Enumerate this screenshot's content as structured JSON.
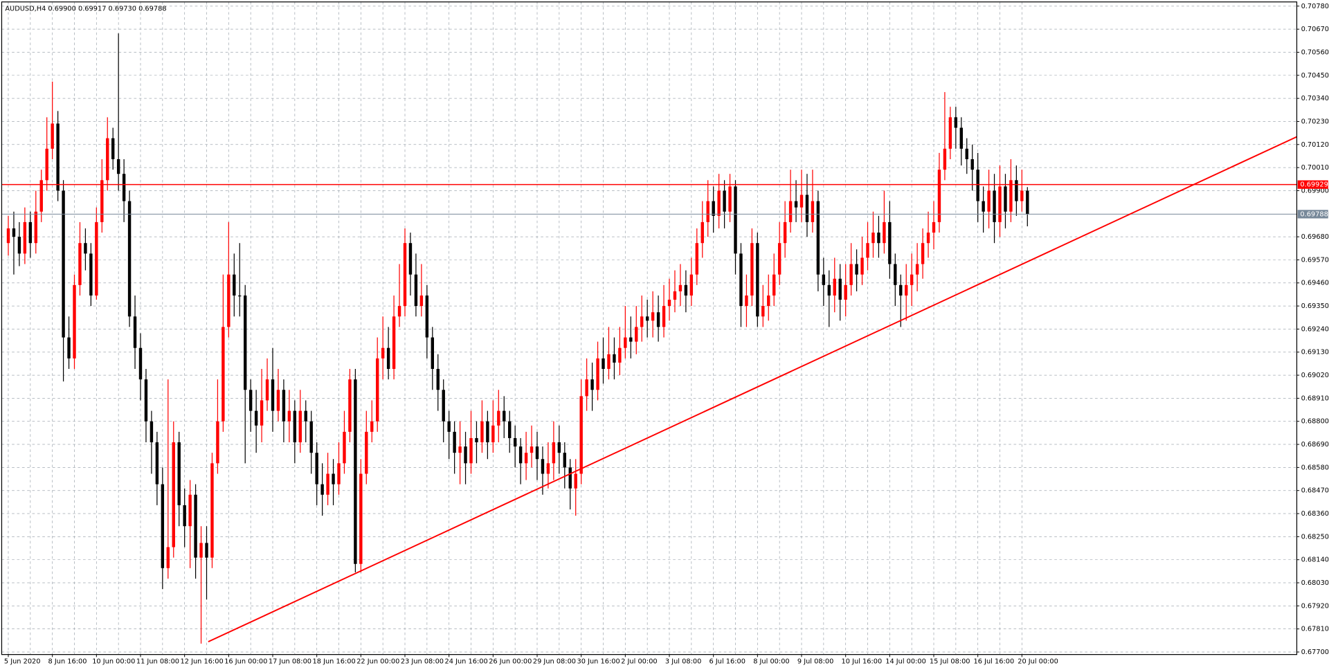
{
  "chart_data": {
    "type": "candlestick",
    "title": "AUDUSD,H4  0.69900 0.69917 0.69730 0.69788",
    "bull_color": "#ff0000",
    "bear_color": "#000000",
    "grid": true,
    "xlim": [
      -1.2,
      233.9
    ],
    "ylim": [
      0.67688,
      0.708
    ],
    "xticks": [
      {
        "value": 0,
        "label": "5 Jun 2020"
      },
      {
        "value": 8,
        "label": "8 Jun 16:00"
      },
      {
        "value": 16,
        "label": "10 Jun 00:00"
      },
      {
        "value": 24,
        "label": "11 Jun 08:00"
      },
      {
        "value": 32,
        "label": "12 Jun 16:00"
      },
      {
        "value": 40,
        "label": "16 Jun 00:00"
      },
      {
        "value": 48,
        "label": "17 Jun 08:00"
      },
      {
        "value": 56,
        "label": "18 Jun 16:00"
      },
      {
        "value": 64,
        "label": "22 Jun 00:00"
      },
      {
        "value": 72,
        "label": "23 Jun 08:00"
      },
      {
        "value": 80,
        "label": "24 Jun 16:00"
      },
      {
        "value": 88,
        "label": "26 Jun 00:00"
      },
      {
        "value": 96,
        "label": "29 Jun 08:00"
      },
      {
        "value": 104,
        "label": "30 Jun 16:00"
      },
      {
        "value": 112,
        "label": "2 Jul 00:00"
      },
      {
        "value": 120,
        "label": "3 Jul 08:00"
      },
      {
        "value": 128,
        "label": "6 Jul 16:00"
      },
      {
        "value": 136,
        "label": "8 Jul 00:00"
      },
      {
        "value": 144,
        "label": "9 Jul 08:00"
      },
      {
        "value": 152,
        "label": "10 Jul 16:00"
      },
      {
        "value": 160,
        "label": "14 Jul 00:00"
      },
      {
        "value": 168,
        "label": "15 Jul 08:00"
      },
      {
        "value": 176,
        "label": "16 Jul 16:00"
      },
      {
        "value": 184,
        "label": "20 Jul 00:00"
      }
    ],
    "yticks": [
      {
        "value": 0.7078,
        "label": "0.70780"
      },
      {
        "value": 0.7067,
        "label": "0.70670"
      },
      {
        "value": 0.7056,
        "label": "0.70560"
      },
      {
        "value": 0.7045,
        "label": "0.70450"
      },
      {
        "value": 0.7034,
        "label": "0.70340"
      },
      {
        "value": 0.7023,
        "label": "0.70230"
      },
      {
        "value": 0.7012,
        "label": "0.70120"
      },
      {
        "value": 0.7001,
        "label": "0.70010"
      },
      {
        "value": 0.699,
        "label": "0.69900"
      },
      {
        "value": 0.6968,
        "label": "0.69680"
      },
      {
        "value": 0.6957,
        "label": "0.69570"
      },
      {
        "value": 0.6946,
        "label": "0.69460"
      },
      {
        "value": 0.6935,
        "label": "0.69350"
      },
      {
        "value": 0.6924,
        "label": "0.69240"
      },
      {
        "value": 0.6913,
        "label": "0.69130"
      },
      {
        "value": 0.6902,
        "label": "0.69020"
      },
      {
        "value": 0.6891,
        "label": "0.68910"
      },
      {
        "value": 0.688,
        "label": "0.68800"
      },
      {
        "value": 0.6869,
        "label": "0.68690"
      },
      {
        "value": 0.6858,
        "label": "0.68580"
      },
      {
        "value": 0.6847,
        "label": "0.68470"
      },
      {
        "value": 0.6836,
        "label": "0.68360"
      },
      {
        "value": 0.6825,
        "label": "0.68250"
      },
      {
        "value": 0.6814,
        "label": "0.68140"
      },
      {
        "value": 0.6803,
        "label": "0.68030"
      },
      {
        "value": 0.6792,
        "label": "0.67920"
      },
      {
        "value": 0.6781,
        "label": "0.67810"
      },
      {
        "value": 0.677,
        "label": "0.67700"
      }
    ],
    "hlines": [
      {
        "value": 0.69929,
        "color": "#ff0000"
      },
      {
        "value": 0.69788,
        "color": "#778899"
      }
    ],
    "trendline": {
      "x": [
        36.3,
        233.9
      ],
      "y": [
        0.67749,
        0.70157
      ],
      "color": "#ff0000"
    },
    "open": [
      0.6965,
      0.6972,
      0.6968,
      0.696,
      0.6975,
      0.6965,
      0.698,
      0.6995,
      0.701,
      0.7022,
      0.699,
      0.692,
      0.691,
      0.6945,
      0.6965,
      0.696,
      0.694,
      0.6975,
      0.6995,
      0.7015,
      0.7005,
      0.6998,
      0.6985,
      0.693,
      0.6915,
      0.69,
      0.688,
      0.687,
      0.685,
      0.681,
      0.682,
      0.687,
      0.684,
      0.683,
      0.6845,
      0.6815,
      0.6822,
      0.6815,
      0.686,
      0.688,
      0.6925,
      0.695,
      0.694,
      0.694,
      0.6895,
      0.6885,
      0.6878,
      0.689,
      0.69,
      0.6885,
      0.6895,
      0.688,
      0.6885,
      0.687,
      0.6885,
      0.688,
      0.6865,
      0.685,
      0.6845,
      0.6855,
      0.685,
      0.686,
      0.6875,
      0.69,
      0.6812,
      0.6855,
      0.6875,
      0.688,
      0.691,
      0.6915,
      0.6905,
      0.693,
      0.6935,
      0.6965,
      0.695,
      0.6935,
      0.694,
      0.692,
      0.6905,
      0.6895,
      0.688,
      0.6875,
      0.6865,
      0.6868,
      0.686,
      0.6872,
      0.687,
      0.688,
      0.687,
      0.6878,
      0.6885,
      0.688,
      0.6872,
      0.6868,
      0.686,
      0.6865,
      0.6868,
      0.6862,
      0.6855,
      0.686,
      0.687,
      0.6865,
      0.6858,
      0.6848,
      0.6855,
      0.6892,
      0.69,
      0.6895,
      0.691,
      0.6905,
      0.6912,
      0.6908,
      0.6915,
      0.692,
      0.6918,
      0.6925,
      0.693,
      0.6928,
      0.6932,
      0.6925,
      0.6935,
      0.6938,
      0.6942,
      0.6945,
      0.694,
      0.695,
      0.6965,
      0.6975,
      0.6985,
      0.6978,
      0.699,
      0.698,
      0.6992,
      0.696,
      0.6935,
      0.694,
      0.6965,
      0.693,
      0.6935,
      0.694,
      0.695,
      0.6965,
      0.6975,
      0.6985,
      0.6982,
      0.6988,
      0.6975,
      0.6985,
      0.695,
      0.6945,
      0.694,
      0.6948,
      0.6938,
      0.6945,
      0.6955,
      0.695,
      0.6958,
      0.6965,
      0.697,
      0.6965,
      0.6975,
      0.6955,
      0.6945,
      0.694,
      0.6945,
      0.695,
      0.6955,
      0.6965,
      0.697,
      0.6975,
      0.7,
      0.701,
      0.7025,
      0.702,
      0.701,
      0.7005,
      0.7,
      0.6985,
      0.698,
      0.699,
      0.6975,
      0.6992,
      0.698,
      0.6995,
      0.6985,
      0.699
    ],
    "high": [
      0.6978,
      0.698,
      0.6975,
      0.6982,
      0.698,
      0.699,
      0.7,
      0.7025,
      0.7042,
      0.7028,
      0.6995,
      0.693,
      0.695,
      0.6975,
      0.6972,
      0.6965,
      0.6982,
      0.7005,
      0.7025,
      0.702,
      0.7065,
      0.7005,
      0.699,
      0.694,
      0.6922,
      0.6905,
      0.6885,
      0.6875,
      0.6858,
      0.69,
      0.688,
      0.6875,
      0.6848,
      0.6852,
      0.685,
      0.683,
      0.683,
      0.6865,
      0.69,
      0.695,
      0.6975,
      0.696,
      0.6965,
      0.6945,
      0.69,
      0.6895,
      0.6905,
      0.691,
      0.6915,
      0.6905,
      0.69,
      0.6895,
      0.689,
      0.6895,
      0.689,
      0.6885,
      0.687,
      0.686,
      0.6865,
      0.6862,
      0.687,
      0.6885,
      0.6905,
      0.6905,
      0.6862,
      0.6885,
      0.689,
      0.692,
      0.693,
      0.6925,
      0.694,
      0.6955,
      0.6972,
      0.697,
      0.696,
      0.6955,
      0.6945,
      0.6925,
      0.6912,
      0.69,
      0.6885,
      0.688,
      0.688,
      0.6875,
      0.6885,
      0.688,
      0.689,
      0.6885,
      0.689,
      0.6895,
      0.6892,
      0.6885,
      0.6878,
      0.6872,
      0.6875,
      0.6878,
      0.6875,
      0.6868,
      0.687,
      0.688,
      0.6878,
      0.687,
      0.6862,
      0.6862,
      0.69,
      0.691,
      0.6908,
      0.6918,
      0.692,
      0.6925,
      0.692,
      0.6925,
      0.6935,
      0.693,
      0.6935,
      0.694,
      0.6938,
      0.6942,
      0.694,
      0.6945,
      0.6948,
      0.6952,
      0.6955,
      0.6952,
      0.6958,
      0.6972,
      0.6985,
      0.6995,
      0.6992,
      0.6998,
      0.6995,
      0.6998,
      0.6995,
      0.6965,
      0.695,
      0.6972,
      0.697,
      0.6945,
      0.695,
      0.696,
      0.6975,
      0.6985,
      0.7,
      0.6995,
      0.7,
      0.6998,
      0.7,
      0.699,
      0.6958,
      0.6952,
      0.6958,
      0.6955,
      0.6955,
      0.6965,
      0.6962,
      0.6968,
      0.6975,
      0.698,
      0.6978,
      0.699,
      0.6985,
      0.696,
      0.695,
      0.6955,
      0.696,
      0.6965,
      0.6972,
      0.698,
      0.6985,
      0.7008,
      0.7037,
      0.703,
      0.703,
      0.7025,
      0.7015,
      0.7012,
      0.7008,
      0.6992,
      0.7,
      0.6998,
      0.7002,
      0.6998,
      0.7005,
      0.7002,
      0.7,
      0.69917
    ],
    "low": [
      0.6959,
      0.695,
      0.6954,
      0.6955,
      0.6958,
      0.696,
      0.6975,
      0.699,
      0.7005,
      0.6985,
      0.6899,
      0.6905,
      0.6905,
      0.694,
      0.6952,
      0.6935,
      0.6938,
      0.697,
      0.699,
      0.7,
      0.699,
      0.6975,
      0.6925,
      0.6905,
      0.689,
      0.687,
      0.6855,
      0.684,
      0.68,
      0.6805,
      0.6815,
      0.683,
      0.682,
      0.681,
      0.6805,
      0.6774,
      0.6795,
      0.681,
      0.6855,
      0.6875,
      0.692,
      0.693,
      0.693,
      0.686,
      0.6875,
      0.6865,
      0.687,
      0.6885,
      0.6875,
      0.688,
      0.687,
      0.687,
      0.686,
      0.6865,
      0.687,
      0.6855,
      0.684,
      0.6835,
      0.684,
      0.684,
      0.6845,
      0.6855,
      0.687,
      0.6808,
      0.6808,
      0.685,
      0.687,
      0.6875,
      0.69,
      0.69,
      0.69,
      0.6925,
      0.693,
      0.694,
      0.693,
      0.693,
      0.691,
      0.6895,
      0.6885,
      0.687,
      0.6862,
      0.6855,
      0.685,
      0.685,
      0.6855,
      0.686,
      0.6865,
      0.6862,
      0.6865,
      0.687,
      0.6872,
      0.6865,
      0.6858,
      0.685,
      0.6852,
      0.6858,
      0.6852,
      0.6845,
      0.6848,
      0.6852,
      0.6855,
      0.6848,
      0.6838,
      0.6835,
      0.685,
      0.6885,
      0.6885,
      0.689,
      0.6898,
      0.69,
      0.69,
      0.6902,
      0.691,
      0.691,
      0.6912,
      0.6918,
      0.692,
      0.692,
      0.6918,
      0.692,
      0.6928,
      0.6932,
      0.6935,
      0.6932,
      0.6935,
      0.6945,
      0.6958,
      0.6968,
      0.697,
      0.6972,
      0.6972,
      0.6975,
      0.695,
      0.6925,
      0.6925,
      0.6935,
      0.6925,
      0.6925,
      0.6928,
      0.6935,
      0.6945,
      0.6958,
      0.697,
      0.6975,
      0.6975,
      0.6968,
      0.697,
      0.6942,
      0.6935,
      0.6925,
      0.6932,
      0.6928,
      0.693,
      0.694,
      0.6942,
      0.6945,
      0.6952,
      0.6958,
      0.6958,
      0.696,
      0.6948,
      0.6935,
      0.6925,
      0.6928,
      0.6935,
      0.6942,
      0.6948,
      0.6958,
      0.6962,
      0.697,
      0.6995,
      0.7005,
      0.701,
      0.7002,
      0.6998,
      0.699,
      0.6975,
      0.697,
      0.6972,
      0.6965,
      0.6968,
      0.6972,
      0.6975,
      0.6978,
      0.698,
      0.6973
    ],
    "close": [
      0.6972,
      0.6968,
      0.696,
      0.6975,
      0.6965,
      0.698,
      0.6995,
      0.701,
      0.7022,
      0.699,
      0.692,
      0.691,
      0.6945,
      0.6965,
      0.696,
      0.694,
      0.6975,
      0.6995,
      0.7015,
      0.7005,
      0.6998,
      0.6985,
      0.693,
      0.6915,
      0.69,
      0.688,
      0.687,
      0.685,
      0.681,
      0.682,
      0.687,
      0.684,
      0.683,
      0.6845,
      0.6815,
      0.6822,
      0.6815,
      0.686,
      0.688,
      0.6925,
      0.695,
      0.694,
      0.694,
      0.6895,
      0.6885,
      0.6878,
      0.689,
      0.69,
      0.6885,
      0.6895,
      0.688,
      0.6885,
      0.687,
      0.6885,
      0.688,
      0.6865,
      0.685,
      0.6845,
      0.6855,
      0.685,
      0.686,
      0.6875,
      0.69,
      0.6812,
      0.6855,
      0.6875,
      0.688,
      0.691,
      0.6915,
      0.6905,
      0.693,
      0.6935,
      0.6965,
      0.695,
      0.6935,
      0.694,
      0.692,
      0.6905,
      0.6895,
      0.688,
      0.6875,
      0.6865,
      0.6868,
      0.686,
      0.6872,
      0.687,
      0.688,
      0.687,
      0.6878,
      0.6885,
      0.688,
      0.6872,
      0.6868,
      0.686,
      0.6865,
      0.6868,
      0.6862,
      0.6855,
      0.686,
      0.687,
      0.6865,
      0.6858,
      0.6848,
      0.6855,
      0.6892,
      0.69,
      0.6895,
      0.691,
      0.6905,
      0.6912,
      0.6908,
      0.6915,
      0.692,
      0.6918,
      0.6925,
      0.693,
      0.6928,
      0.6932,
      0.6925,
      0.6935,
      0.6938,
      0.6942,
      0.6945,
      0.694,
      0.695,
      0.6965,
      0.6975,
      0.6985,
      0.6978,
      0.699,
      0.698,
      0.6992,
      0.696,
      0.6935,
      0.694,
      0.6965,
      0.693,
      0.6935,
      0.694,
      0.695,
      0.6965,
      0.6975,
      0.6985,
      0.6982,
      0.6988,
      0.6975,
      0.6985,
      0.695,
      0.6945,
      0.694,
      0.6948,
      0.6938,
      0.6945,
      0.6955,
      0.695,
      0.6958,
      0.6965,
      0.697,
      0.6965,
      0.6975,
      0.6955,
      0.6945,
      0.694,
      0.6945,
      0.695,
      0.6955,
      0.6965,
      0.697,
      0.6975,
      0.7,
      0.701,
      0.7025,
      0.702,
      0.701,
      0.7005,
      0.7,
      0.6985,
      0.698,
      0.699,
      0.6975,
      0.6992,
      0.698,
      0.6995,
      0.6985,
      0.699,
      0.69788
    ]
  }
}
